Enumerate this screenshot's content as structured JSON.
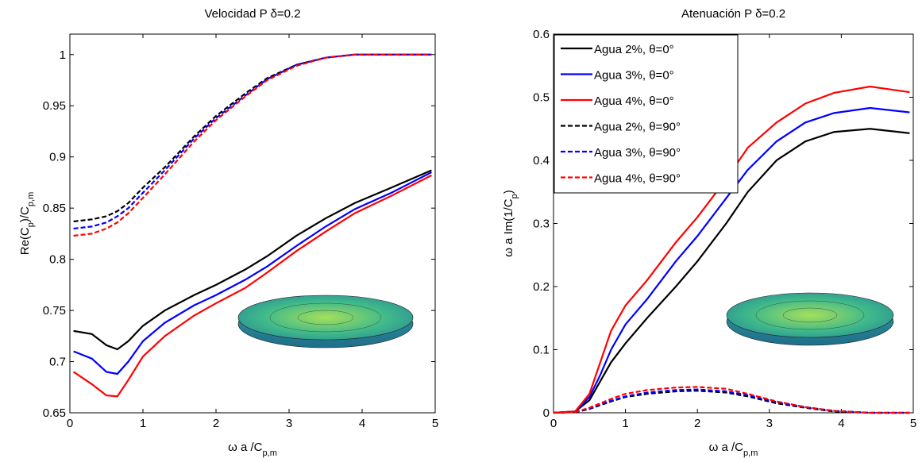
{
  "chart_data": [
    {
      "type": "line",
      "title": "Velocidad P δ=0.2",
      "xlabel": [
        {
          "text": "ω a /C"
        },
        {
          "sub": "p,m"
        }
      ],
      "ylabel": [
        {
          "text": "Re(C"
        },
        {
          "sub": "p"
        },
        {
          "text": ")/C"
        },
        {
          "sub": "p,m"
        }
      ],
      "x": [
        0.05,
        0.3,
        0.5,
        0.65,
        0.8,
        1,
        1.3,
        1.7,
        2,
        2.4,
        2.7,
        3.1,
        3.5,
        3.9,
        4.4,
        4.95
      ],
      "xlim": [
        0,
        5
      ],
      "xticks": [
        0,
        1,
        2,
        3,
        4,
        5
      ],
      "ylim": [
        0.65,
        1.02
      ],
      "yticks": [
        0.65,
        0.7,
        0.75,
        0.8,
        0.85,
        0.9,
        0.95,
        1
      ],
      "series": [
        {
          "color": "#000000",
          "dash": false,
          "values": [
            0.73,
            0.727,
            0.716,
            0.712,
            0.72,
            0.735,
            0.75,
            0.765,
            0.775,
            0.79,
            0.803,
            0.823,
            0.84,
            0.855,
            0.87,
            0.887
          ]
        },
        {
          "color": "#0000ff",
          "dash": false,
          "values": [
            0.71,
            0.703,
            0.69,
            0.688,
            0.7,
            0.72,
            0.738,
            0.755,
            0.765,
            0.78,
            0.793,
            0.813,
            0.832,
            0.849,
            0.865,
            0.885
          ]
        },
        {
          "color": "#ff0000",
          "dash": false,
          "values": [
            0.69,
            0.678,
            0.667,
            0.666,
            0.682,
            0.705,
            0.725,
            0.745,
            0.757,
            0.772,
            0.787,
            0.808,
            0.827,
            0.845,
            0.862,
            0.882
          ]
        },
        {
          "color": "#000000",
          "dash": true,
          "values": [
            0.837,
            0.839,
            0.842,
            0.847,
            0.855,
            0.87,
            0.89,
            0.92,
            0.94,
            0.962,
            0.977,
            0.99,
            0.997,
            1.0,
            1.0,
            1.0
          ]
        },
        {
          "color": "#0000ff",
          "dash": true,
          "values": [
            0.83,
            0.832,
            0.836,
            0.842,
            0.85,
            0.865,
            0.887,
            0.918,
            0.938,
            0.96,
            0.976,
            0.99,
            0.997,
            1.0,
            1.0,
            1.0
          ]
        },
        {
          "color": "#ff0000",
          "dash": true,
          "values": [
            0.823,
            0.825,
            0.83,
            0.836,
            0.845,
            0.86,
            0.883,
            0.915,
            0.936,
            0.959,
            0.975,
            0.989,
            0.997,
            1.0,
            1.0,
            1.0
          ]
        }
      ]
    },
    {
      "type": "line",
      "title": "Atenuación P δ=0.2",
      "xlabel": [
        {
          "text": "ω a /C"
        },
        {
          "sub": "p,m"
        }
      ],
      "ylabel": [
        {
          "text": "ω a Im(1/C"
        },
        {
          "sub": "p"
        },
        {
          "text": ")"
        }
      ],
      "x": [
        0,
        0.3,
        0.5,
        0.65,
        0.8,
        1,
        1.3,
        1.7,
        2,
        2.4,
        2.7,
        3.1,
        3.5,
        3.9,
        4.4,
        4.95
      ],
      "xlim": [
        0,
        5
      ],
      "xticks": [
        0,
        1,
        2,
        3,
        4,
        5
      ],
      "ylim": [
        0,
        0.6
      ],
      "yticks": [
        0,
        0.1,
        0.2,
        0.3,
        0.4,
        0.5,
        0.6
      ],
      "legend": "upper left",
      "series": [
        {
          "name": "Agua 2%, θ=0°",
          "color": "#000000",
          "dash": false,
          "values": [
            0,
            0.002,
            0.02,
            0.05,
            0.08,
            0.11,
            0.15,
            0.2,
            0.24,
            0.3,
            0.35,
            0.4,
            0.43,
            0.445,
            0.45,
            0.443
          ]
        },
        {
          "name": "Agua 3%, θ=0°",
          "color": "#0000ff",
          "dash": false,
          "values": [
            0,
            0.002,
            0.025,
            0.06,
            0.1,
            0.14,
            0.18,
            0.24,
            0.28,
            0.34,
            0.385,
            0.43,
            0.46,
            0.475,
            0.483,
            0.476
          ]
        },
        {
          "name": "Agua 4%, θ=0°",
          "color": "#ff0000",
          "dash": false,
          "values": [
            0,
            0.002,
            0.03,
            0.08,
            0.13,
            0.17,
            0.21,
            0.27,
            0.31,
            0.37,
            0.42,
            0.46,
            0.49,
            0.507,
            0.517,
            0.508
          ]
        },
        {
          "name": "Agua 2%, θ=90°",
          "color": "#000000",
          "dash": true,
          "values": [
            0,
            0.001,
            0.006,
            0.012,
            0.018,
            0.025,
            0.03,
            0.034,
            0.035,
            0.032,
            0.026,
            0.015,
            0.008,
            0.002,
            0,
            0
          ]
        },
        {
          "name": "Agua 3%, θ=90°",
          "color": "#0000ff",
          "dash": true,
          "values": [
            0,
            0.001,
            0.007,
            0.013,
            0.019,
            0.026,
            0.032,
            0.036,
            0.037,
            0.034,
            0.028,
            0.017,
            0.009,
            0.003,
            0,
            0
          ]
        },
        {
          "name": "Agua 4%, θ=90°",
          "color": "#ff0000",
          "dash": true,
          "values": [
            0,
            0.001,
            0.008,
            0.015,
            0.022,
            0.03,
            0.036,
            0.04,
            0.041,
            0.038,
            0.03,
            0.018,
            0.009,
            0.003,
            0,
            0
          ]
        }
      ]
    }
  ]
}
